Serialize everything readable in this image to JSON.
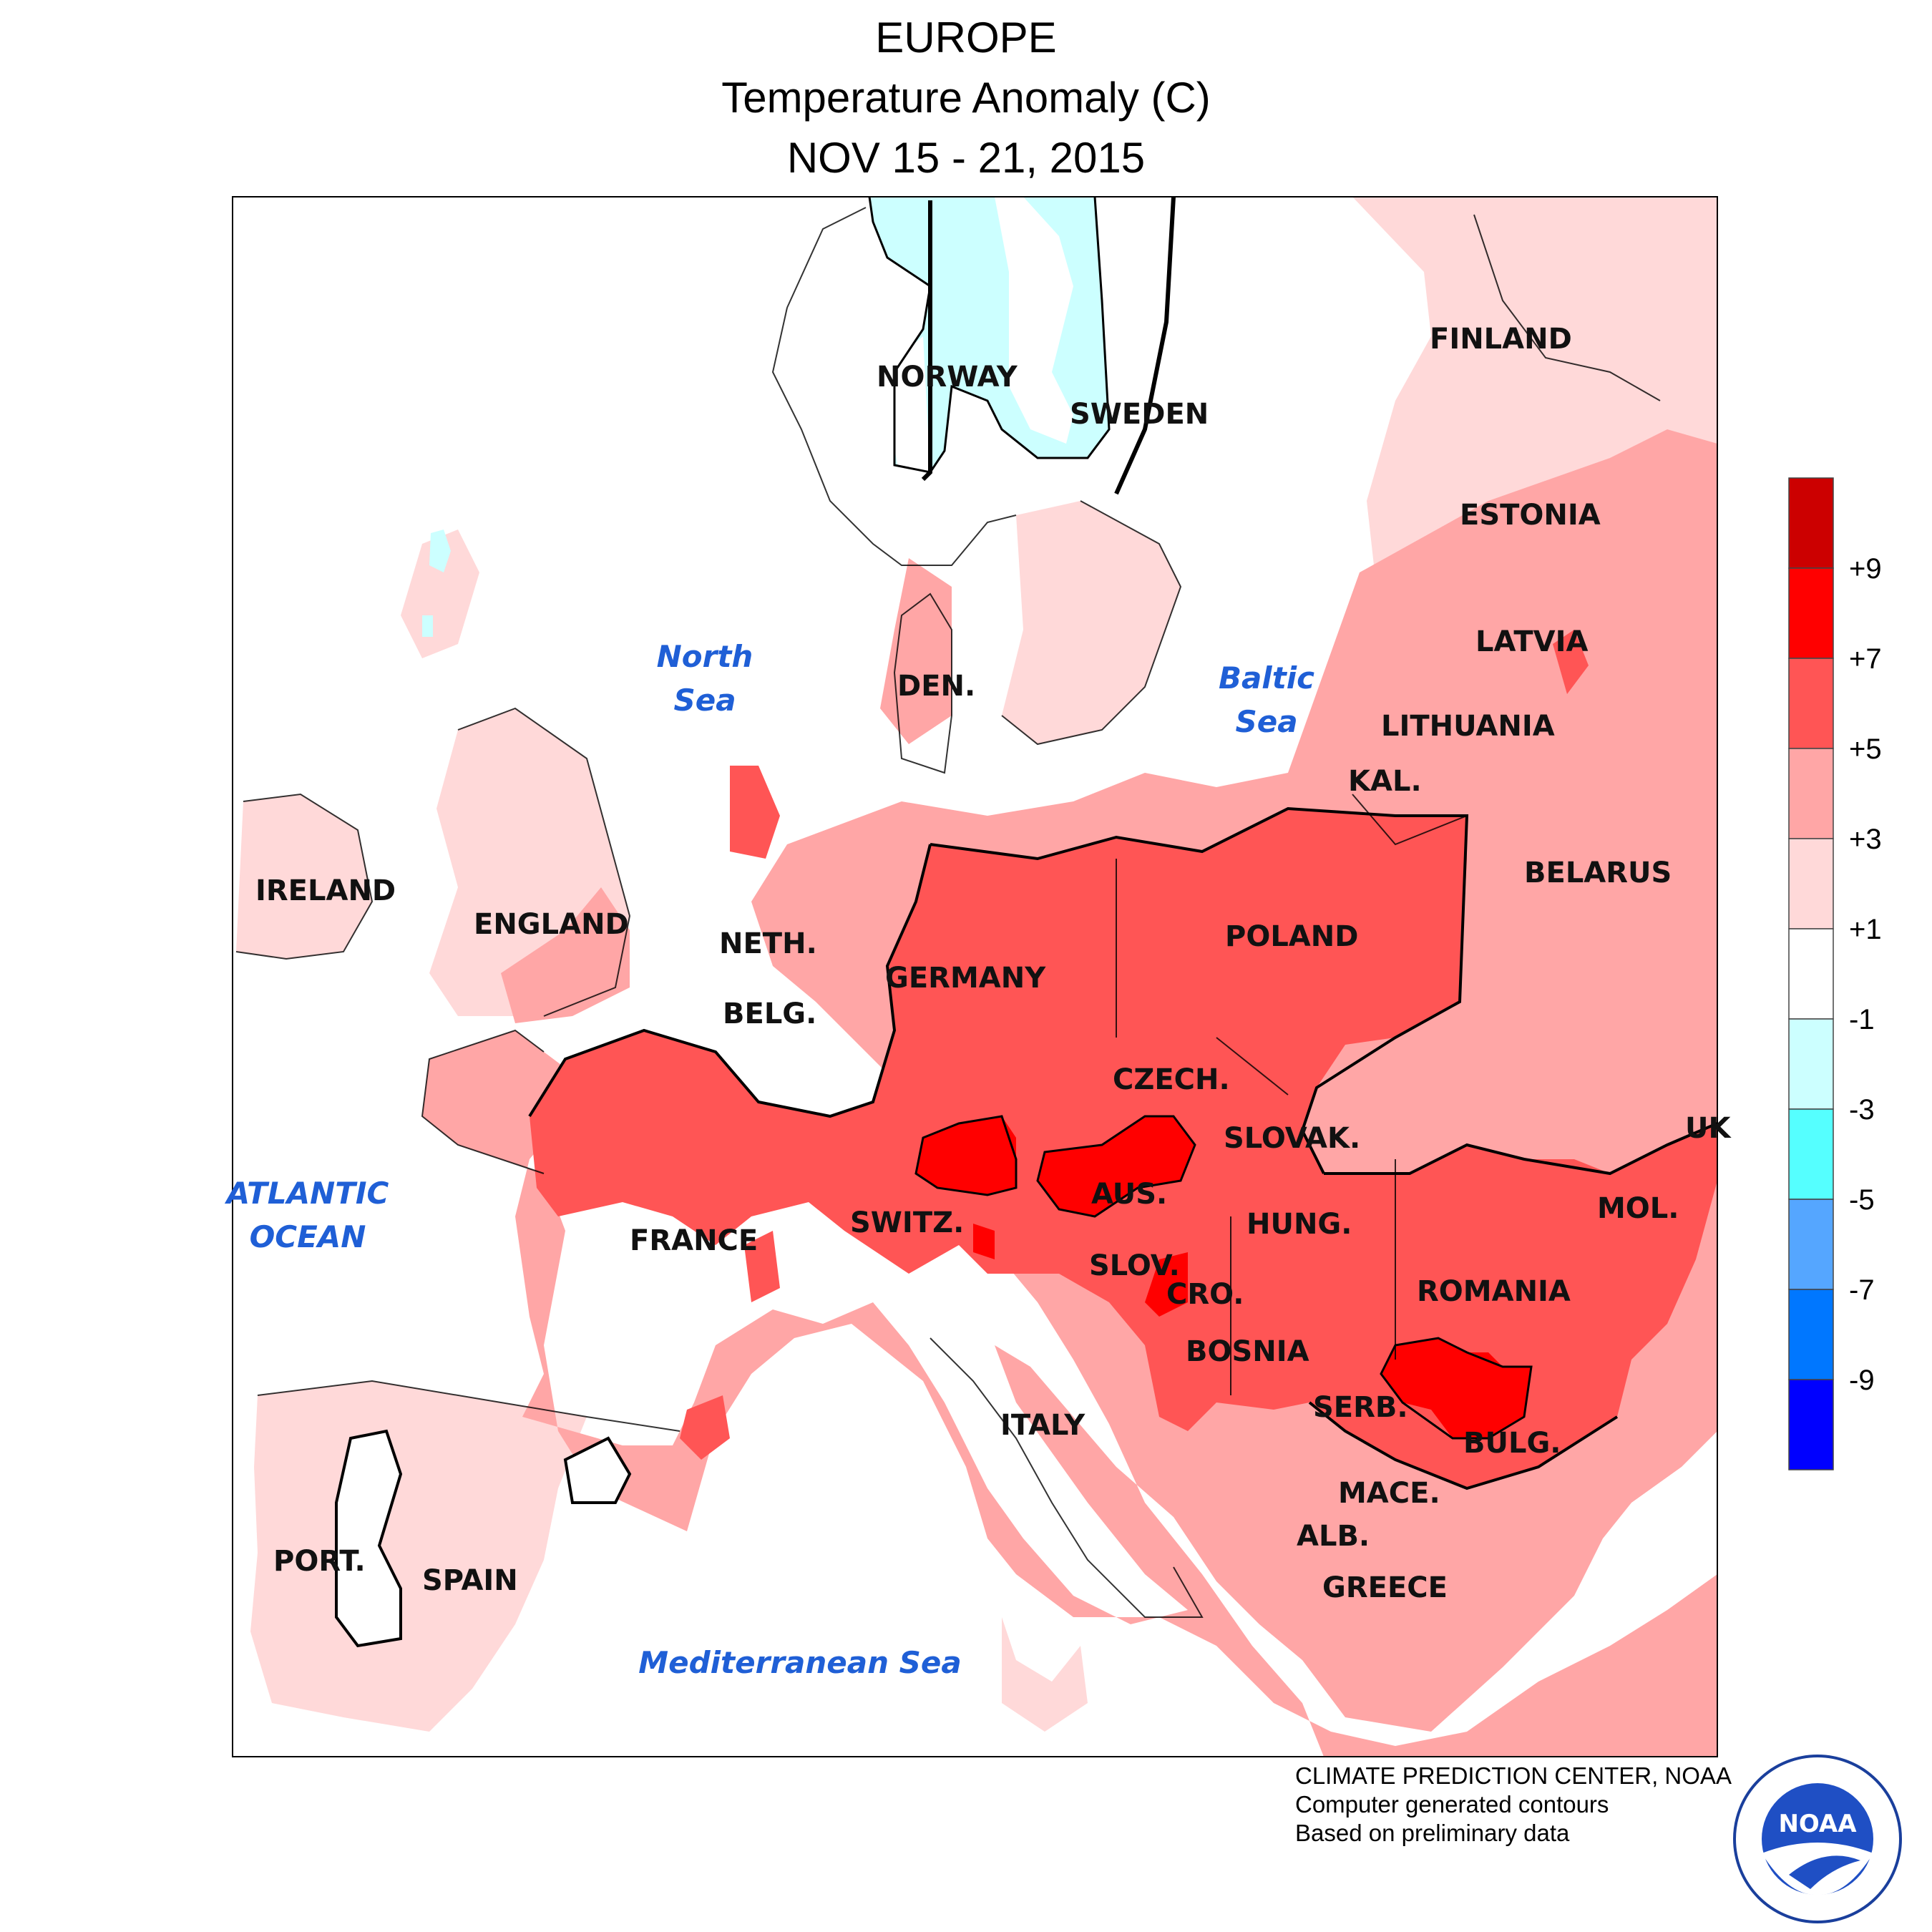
{
  "header": {
    "title": "EUROPE",
    "subtitle": "Temperature Anomaly (C)",
    "period": "NOV 15 - 21, 2015"
  },
  "countries": [
    "NORWAY",
    "SWEDEN",
    "FINLAND",
    "ESTONIA",
    "LATVIA",
    "LITHUANIA",
    "KAL.",
    "BELARUS",
    "DEN.",
    "IRELAND",
    "ENGLAND",
    "NETH.",
    "BELG.",
    "GERMANY",
    "POLAND",
    "CZECH.",
    "SLOVAK.",
    "UK",
    "AUS.",
    "HUNG.",
    "SWITZ.",
    "FRANCE",
    "SLOV.",
    "CRO.",
    "ROMANIA",
    "MOL.",
    "BOSNIA",
    "SERB.",
    "BULG.",
    "ITALY",
    "MACE.",
    "ALB.",
    "GREECE",
    "PORT.",
    "SPAIN"
  ],
  "seas": {
    "north_1": "North",
    "north_2": "Sea",
    "baltic_1": "Baltic",
    "baltic_2": "Sea",
    "atlantic_1": "ATLANTIC",
    "atlantic_2": "OCEAN",
    "med": "Mediterranean Sea"
  },
  "legend": {
    "labels": [
      "+9",
      "+7",
      "+5",
      "+3",
      "+1",
      "-1",
      "-3",
      "-5",
      "-7",
      "-9"
    ],
    "colors": [
      "#cc0000",
      "#ff0000",
      "#ff5555",
      "#ffa6a6",
      "#ffd9d9",
      "#ffffff",
      "#ccffff",
      "#55ffff",
      "#55a6ff",
      "#0077ff",
      "#0000ff"
    ]
  },
  "credits": {
    "line1": "CLIMATE PREDICTION CENTER, NOAA",
    "line2": "Computer generated contours",
    "line3": "Based on preliminary data"
  },
  "logo": {
    "text": "NOAA"
  }
}
